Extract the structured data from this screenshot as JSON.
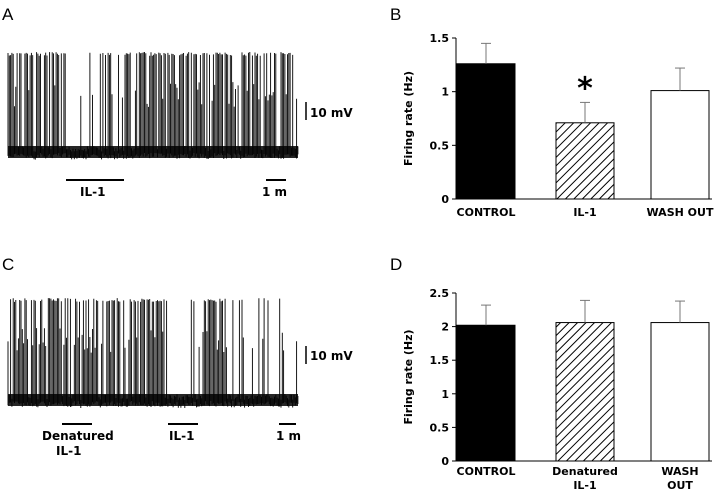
{
  "panels": {
    "A": {
      "letter": "A",
      "scale_bar_voltage": "10 mV",
      "scale_bar_time": "1 m",
      "treatment_labels": [
        "IL-1"
      ]
    },
    "B": {
      "letter": "B"
    },
    "C": {
      "letter": "C",
      "scale_bar_voltage": "10 mV",
      "scale_bar_time": "1 m",
      "treatment_labels": [
        "Denatured",
        "IL-1",
        "IL-1"
      ]
    },
    "D": {
      "letter": "D"
    }
  },
  "colors": {
    "control": "#000000",
    "washout": "#ffffff",
    "hatch": "#000000"
  },
  "chart_data": [
    {
      "panel": "B",
      "type": "bar",
      "ylabel": "Firing rate (Hz)",
      "ylim": [
        0,
        1.5
      ],
      "yticks": [
        "0",
        "0.5",
        "1",
        "1.5"
      ],
      "categories": [
        "CONTROL",
        "IL-1",
        "WASH OUT"
      ],
      "values": [
        1.26,
        0.71,
        1.01
      ],
      "errors": [
        0.19,
        0.19,
        0.21
      ],
      "fills": [
        "solid",
        "hatched",
        "open"
      ],
      "annotations": [
        "",
        "*",
        ""
      ]
    },
    {
      "panel": "D",
      "type": "bar",
      "ylabel": "Firing rate (Hz)",
      "ylim": [
        0,
        2.5
      ],
      "yticks": [
        "0",
        "0.5",
        "1",
        "1.5",
        "2",
        "2.5"
      ],
      "categories": [
        "CONTROL",
        "Denatured IL-1",
        "WASH OUT"
      ],
      "values": [
        2.02,
        2.06,
        2.06
      ],
      "errors": [
        0.3,
        0.33,
        0.32
      ],
      "fills": [
        "solid",
        "hatched",
        "open"
      ],
      "annotations": [
        "",
        "",
        ""
      ]
    }
  ]
}
